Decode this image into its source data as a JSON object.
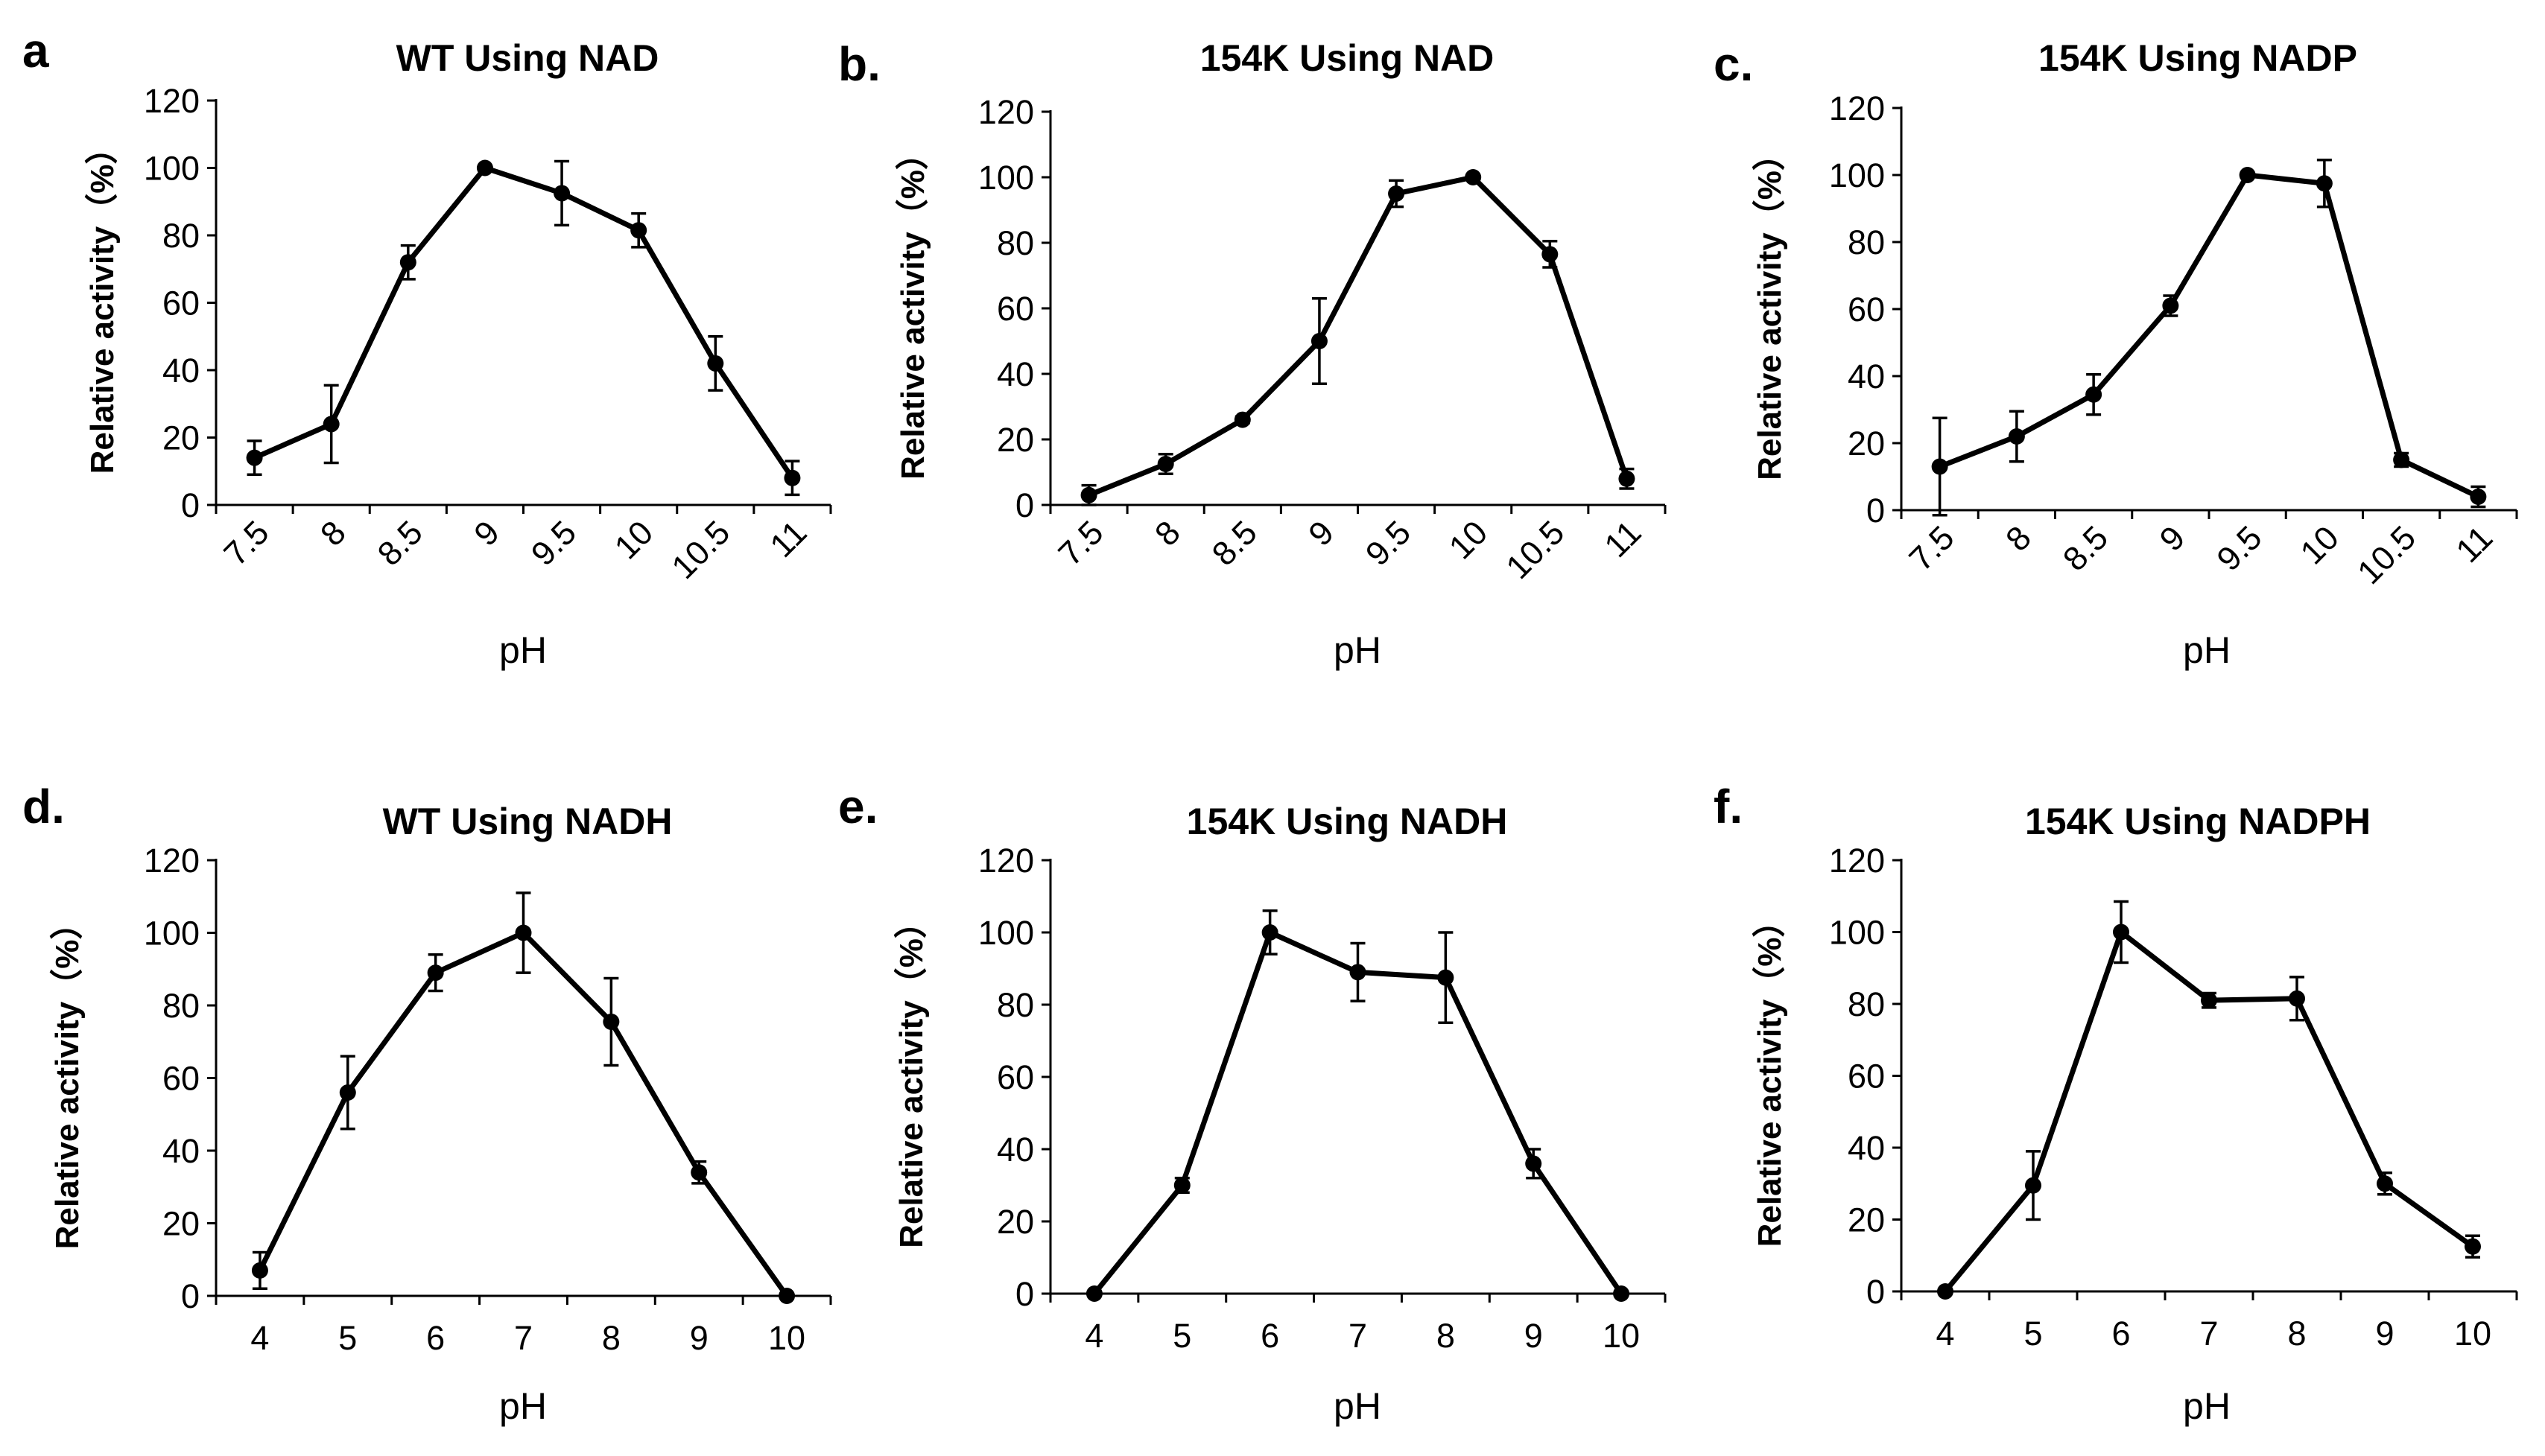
{
  "chart_data": [
    {
      "type": "line",
      "panel": "a",
      "title": "WT Using NAD",
      "xlabel": "pH",
      "ylabel": "Relative activity（%）",
      "categories": [
        "7.5",
        "8",
        "8.5",
        "9",
        "9.5",
        "10",
        "10.5",
        "11"
      ],
      "tick_rotation": "rotated",
      "series": [
        {
          "name": "WT Using NAD",
          "values": [
            14,
            24,
            72,
            100,
            92.5,
            81.5,
            42,
            8
          ],
          "errors": [
            5,
            11.5,
            5,
            0,
            9.5,
            5,
            8,
            5
          ]
        }
      ],
      "ylim": [
        0,
        120
      ],
      "yticks": [
        "0",
        "20",
        "40",
        "60",
        "80",
        "100",
        "120"
      ],
      "grid": false
    },
    {
      "type": "line",
      "panel": "b.",
      "title": "154K Using NAD",
      "xlabel": "pH",
      "ylabel": "Relative activity（%）",
      "categories": [
        "7.5",
        "8",
        "8.5",
        "9",
        "9.5",
        "10",
        "10.5",
        "11"
      ],
      "tick_rotation": "rotated",
      "series": [
        {
          "name": "154K Using NAD",
          "values": [
            3,
            12.5,
            26,
            50,
            95,
            100,
            76.5,
            8
          ],
          "errors": [
            3,
            3,
            1,
            13,
            4,
            0,
            4,
            3
          ]
        }
      ],
      "ylim": [
        0,
        120
      ],
      "yticks": [
        "0",
        "20",
        "40",
        "60",
        "80",
        "100",
        "120"
      ],
      "grid": false
    },
    {
      "type": "line",
      "panel": "c.",
      "title": "154K Using NADP",
      "xlabel": "pH",
      "ylabel": "Relative activity（%）",
      "categories": [
        "7.5",
        "8",
        "8.5",
        "9",
        "9.5",
        "10",
        "10.5",
        "11"
      ],
      "tick_rotation": "rotated",
      "series": [
        {
          "name": "154K Using NADP",
          "values": [
            13,
            22,
            34.5,
            61,
            100,
            97.5,
            15,
            4
          ],
          "errors": [
            14.5,
            7.5,
            6,
            3,
            0,
            7,
            2,
            3
          ]
        }
      ],
      "ylim": [
        0,
        120
      ],
      "yticks": [
        "0",
        "20",
        "40",
        "60",
        "80",
        "100",
        "120"
      ],
      "grid": false
    },
    {
      "type": "line",
      "panel": "d.",
      "title": "WT Using NADH",
      "xlabel": "pH",
      "ylabel": "Relative activity（%）",
      "categories": [
        "4",
        "5",
        "6",
        "7",
        "8",
        "9",
        "10"
      ],
      "tick_rotation": "horizontal",
      "series": [
        {
          "name": "WT Using NADH",
          "values": [
            7,
            56,
            89,
            100,
            75.5,
            34,
            0
          ],
          "errors": [
            5,
            10,
            5,
            11,
            12,
            3,
            0
          ]
        }
      ],
      "ylim": [
        0,
        120
      ],
      "yticks": [
        "0",
        "20",
        "40",
        "60",
        "80",
        "100",
        "120"
      ],
      "grid": false
    },
    {
      "type": "line",
      "panel": "e.",
      "title": "154K Using NADH",
      "xlabel": "pH",
      "ylabel": "Relative activity（%）",
      "categories": [
        "4",
        "5",
        "6",
        "7",
        "8",
        "9",
        "10"
      ],
      "tick_rotation": "horizontal",
      "series": [
        {
          "name": "154K Using NADH",
          "values": [
            0,
            30,
            100,
            89,
            87.5,
            36,
            0
          ],
          "errors": [
            0,
            2,
            6,
            8,
            12.5,
            4,
            0
          ]
        }
      ],
      "ylim": [
        0,
        120
      ],
      "yticks": [
        "0",
        "20",
        "40",
        "60",
        "80",
        "100",
        "120"
      ],
      "grid": false
    },
    {
      "type": "line",
      "panel": "f.",
      "title": "154K Using NADPH",
      "xlabel": "pH",
      "ylabel": "Relative activity（%）",
      "categories": [
        "4",
        "5",
        "6",
        "7",
        "8",
        "9",
        "10"
      ],
      "tick_rotation": "horizontal",
      "series": [
        {
          "name": "154K Using NADPH",
          "values": [
            0,
            29.5,
            100,
            81,
            81.5,
            30,
            12.5
          ],
          "errors": [
            0,
            9.5,
            8.5,
            2,
            6,
            3,
            3
          ]
        }
      ],
      "ylim": [
        0,
        120
      ],
      "yticks": [
        "0",
        "20",
        "40",
        "60",
        "80",
        "100",
        "120"
      ],
      "grid": false
    }
  ]
}
